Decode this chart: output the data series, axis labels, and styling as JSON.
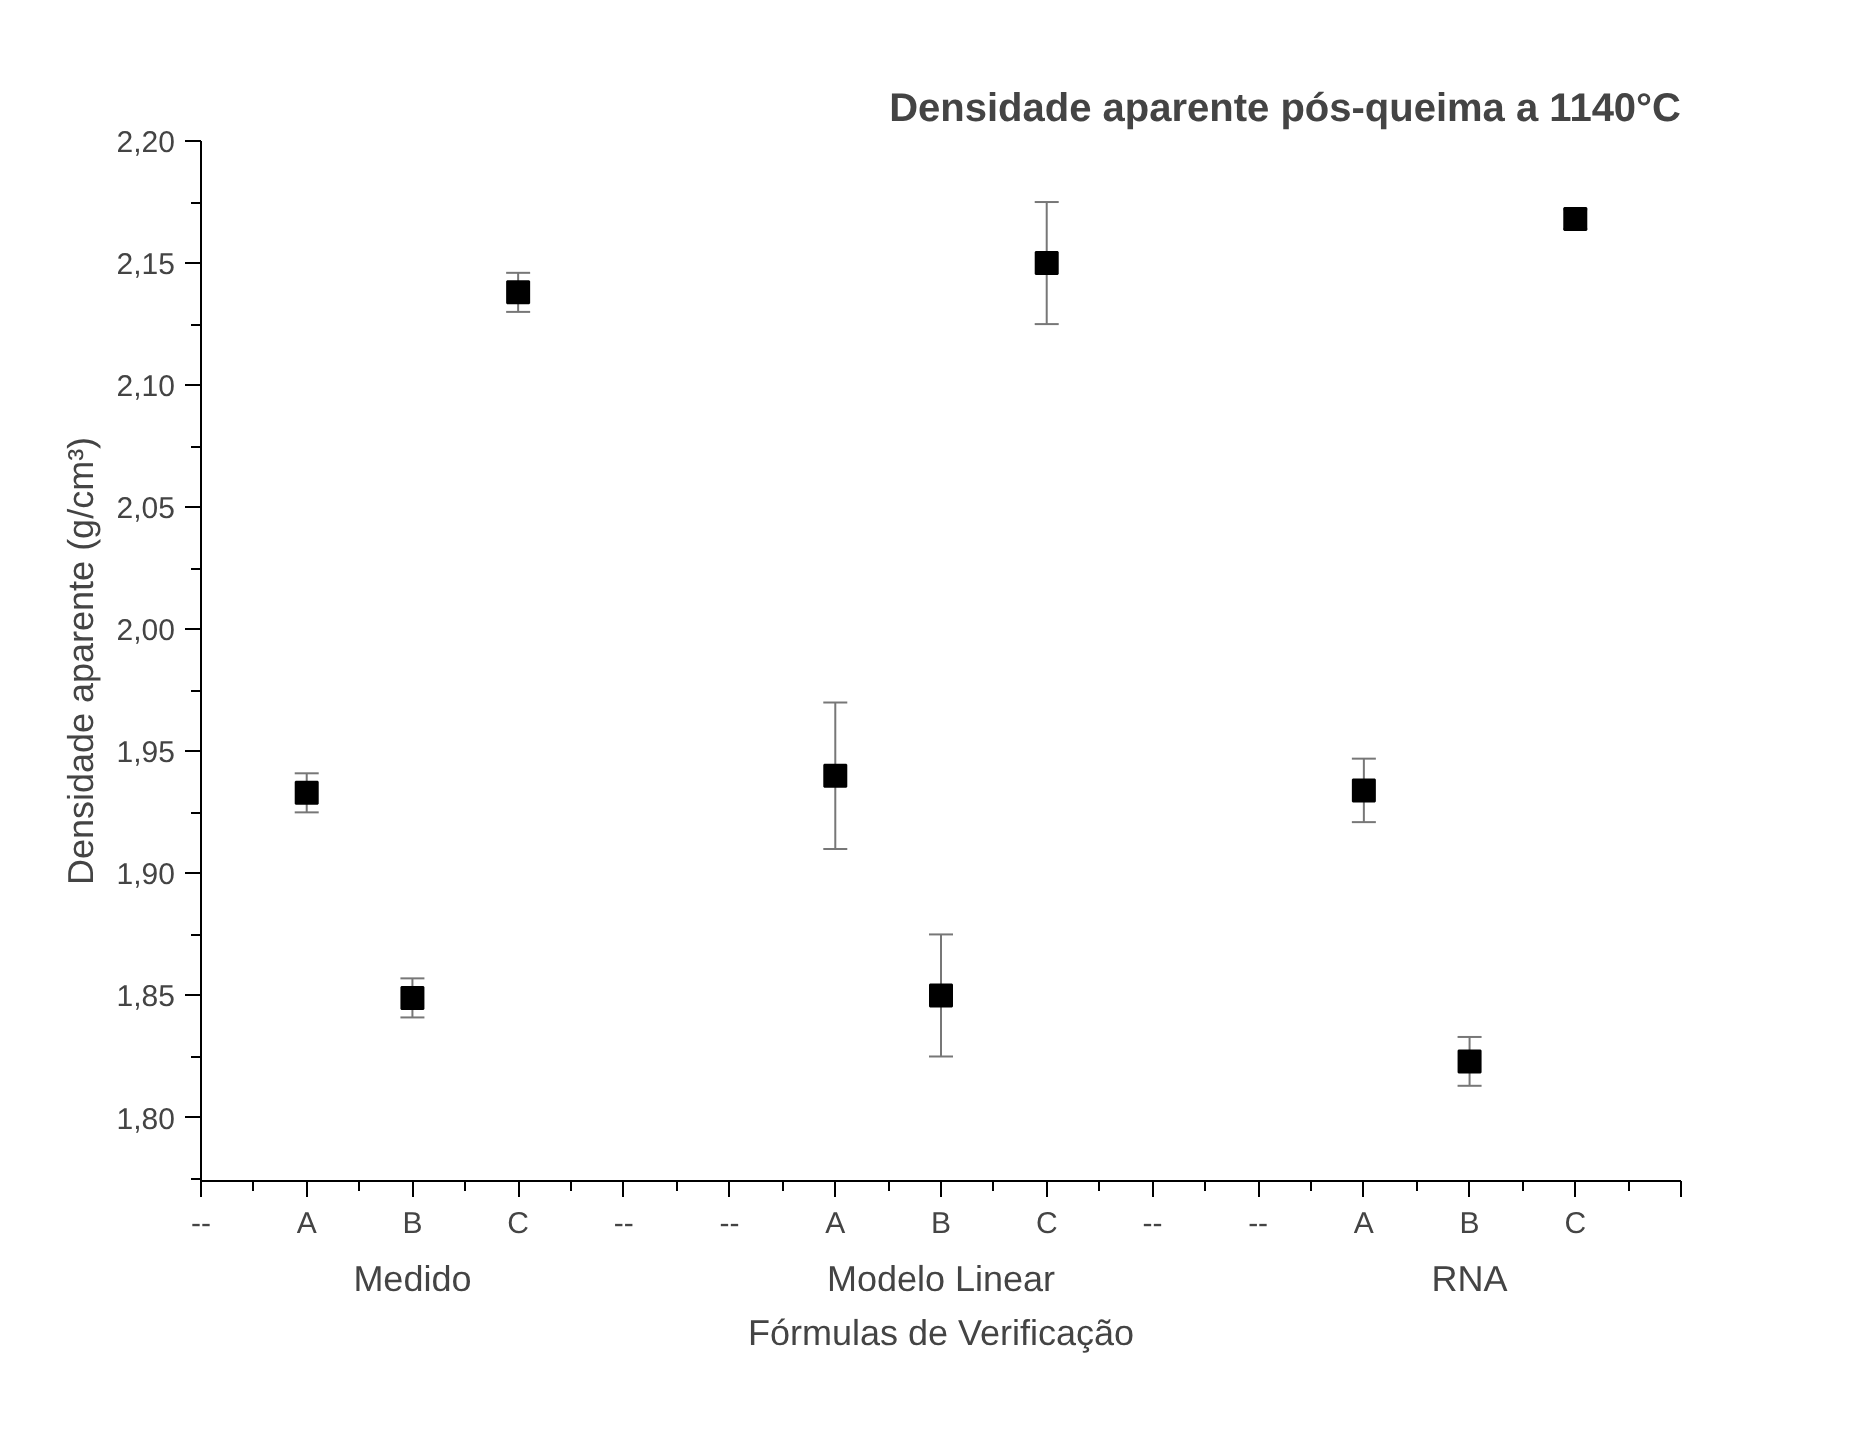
{
  "chart_data": {
    "type": "scatter",
    "title": "Densidade aparente pós-queima a 1140°C",
    "xlabel": "Fórmulas de Verificação",
    "ylabel": "Densidade aparente (g/cm³)",
    "categories": [
      "--",
      "A",
      "B",
      "C",
      "--",
      "--",
      "A",
      "B",
      "C",
      "--",
      "--",
      "A",
      "B",
      "C",
      null
    ],
    "series": [
      {
        "color": "#000000",
        "values": [
          null,
          1.933,
          1.849,
          2.138,
          null,
          null,
          1.94,
          1.85,
          2.15,
          null,
          null,
          1.934,
          1.823,
          2.168,
          null
        ],
        "errors": [
          null,
          0.008,
          0.008,
          0.008,
          null,
          null,
          0.03,
          0.025,
          0.025,
          null,
          null,
          0.013,
          0.01,
          0.004,
          null
        ]
      }
    ],
    "ylim": [
      1.774,
      2.2
    ],
    "yticks": [
      {
        "value": 1.8,
        "label": "1,80"
      },
      {
        "value": 1.85,
        "label": "1,85"
      },
      {
        "value": 1.9,
        "label": "1,90"
      },
      {
        "value": 1.95,
        "label": "1,95"
      },
      {
        "value": 2.0,
        "label": "2,00"
      },
      {
        "value": 2.05,
        "label": "2,05"
      },
      {
        "value": 2.1,
        "label": "2,10"
      },
      {
        "value": 2.15,
        "label": "2,15"
      },
      {
        "value": 2.2,
        "label": "2,20"
      }
    ],
    "annotations": [
      "Medido",
      "Modelo Linear",
      "RNA"
    ],
    "marker": "square",
    "grid": false
  }
}
